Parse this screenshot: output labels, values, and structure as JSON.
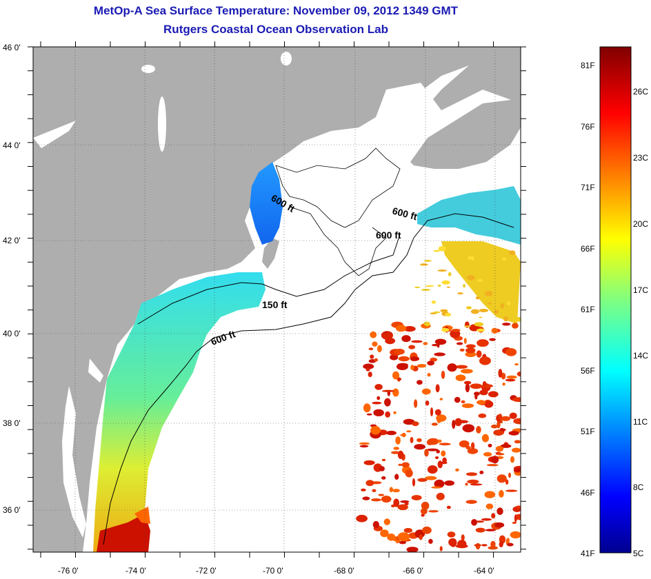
{
  "title": {
    "line1": "MetOp-A Sea Surface Temperature:  November 09, 2012 1349 GMT",
    "line2": "Rutgers Coastal Ocean Observation Lab"
  },
  "map": {
    "lat_ticks": [
      "46 0'",
      "44 0'",
      "42 0'",
      "40 0'",
      "38 0'",
      "36 0'"
    ],
    "lon_ticks": [
      "-76 0'",
      "-74 0'",
      "-72 0'",
      "-70 0'",
      "-68 0'",
      "-66 0'",
      "-64 0'"
    ],
    "contour_labels": [
      "600 ft",
      "600 ft",
      "600 ft",
      "150 ft",
      "600 ft"
    ],
    "land_color": "#aeaeae",
    "grid": "dotted"
  },
  "colorbar": {
    "fahrenheit_labels": [
      "81F",
      "76F",
      "71F",
      "66F",
      "61F",
      "56F",
      "51F",
      "46F",
      "41F"
    ],
    "celsius_labels": [
      "26C",
      "23C",
      "20C",
      "17C",
      "14C",
      "11C",
      "8C",
      "5C"
    ],
    "colormap": "jet",
    "range_celsius": [
      5,
      27.2
    ]
  }
}
